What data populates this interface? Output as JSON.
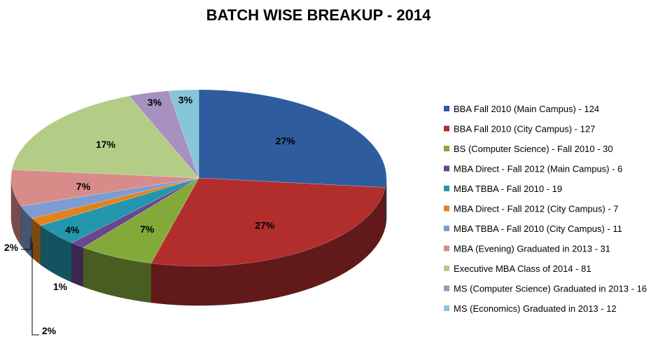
{
  "chart_data": {
    "type": "pie",
    "title": "BATCH WISE BREAKUP - 2014",
    "legend_position": "right",
    "slices": [
      {
        "label": "BBA Fall 2010 (Main Campus) - 124",
        "value": 124,
        "percent_label": "27%",
        "color": "#2e5c9e"
      },
      {
        "label": "BBA Fall 2010 (City Campus) - 127",
        "value": 127,
        "percent_label": "27%",
        "color": "#b22e2d"
      },
      {
        "label": "BS (Computer Science) - Fall 2010 - 30",
        "value": 30,
        "percent_label": "7%",
        "color": "#84a93b"
      },
      {
        "label": "MBA Direct - Fall 2012 (Main Campus) - 6",
        "value": 6,
        "percent_label": "1%",
        "color": "#6a4690"
      },
      {
        "label": "MBA TBBA - Fall 2010 - 19",
        "value": 19,
        "percent_label": "4%",
        "color": "#2396ad"
      },
      {
        "label": "MBA Direct - Fall 2012 (City Campus) - 7",
        "value": 7,
        "percent_label": "2%",
        "color": "#e2821e"
      },
      {
        "label": "MBA TBBA - Fall 2010 (City Campus) - 11",
        "value": 11,
        "percent_label": "2%",
        "color": "#7e9cd1"
      },
      {
        "label": "MBA (Evening) Graduated in 2013 - 31",
        "value": 31,
        "percent_label": "7%",
        "color": "#d88c8a"
      },
      {
        "label": "Executive MBA Class of 2014 - 81",
        "value": 81,
        "percent_label": "17%",
        "color": "#b4cd86"
      },
      {
        "label": "MS (Computer Science) Graduated in 2013 - 16",
        "value": 16,
        "percent_label": "3%",
        "color": "#a791bf"
      },
      {
        "label": "MS (Economics) Graduated in 2013 - 12",
        "value": 12,
        "percent_label": "3%",
        "color": "#86c6d8"
      }
    ]
  }
}
